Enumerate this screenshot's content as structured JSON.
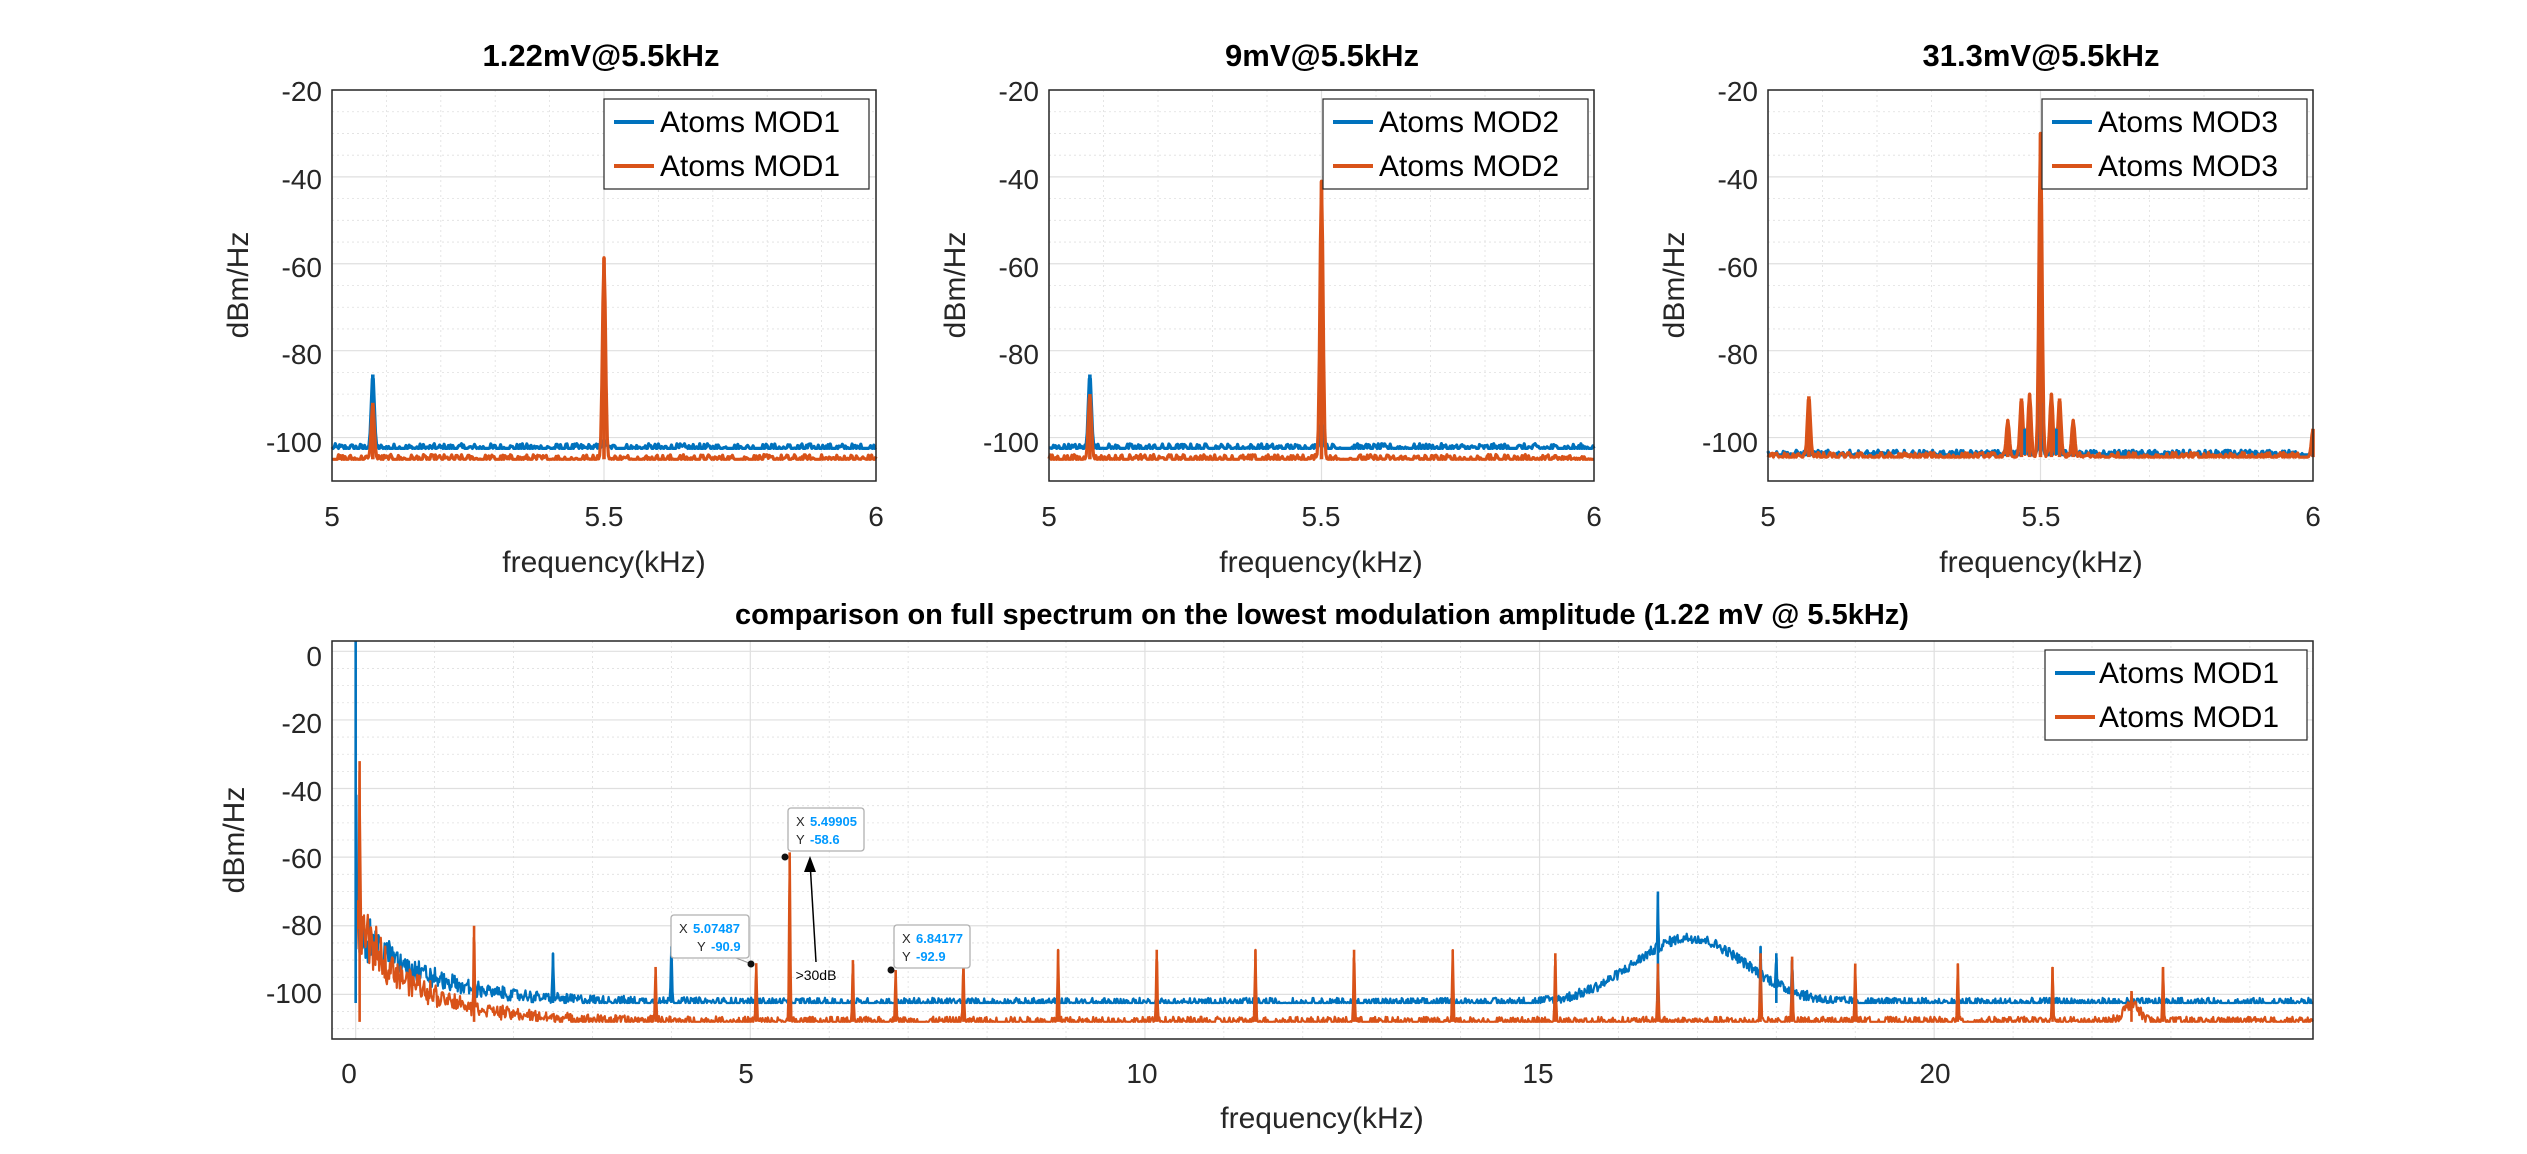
{
  "colors": {
    "series1": "#0072BD",
    "series2": "#D95319",
    "axis": "#262626",
    "grid": "#DFDFDF",
    "datatip_value": "#0099FF"
  },
  "chart_data": [
    {
      "type": "line",
      "title": "1.22mV@5.5kHz",
      "xlabel": "frequency(kHz)",
      "ylabel": "dBm/Hz",
      "xlim": [
        5,
        6
      ],
      "ylim": [
        -110,
        -20
      ],
      "y_reversed_ticks": [
        "-20",
        "-40",
        "-60",
        "-80",
        "-100"
      ],
      "xticks": [
        "5",
        "5.5",
        "6"
      ],
      "grid": true,
      "legend_position": "top-right",
      "series": [
        {
          "name": "Atoms MOD1",
          "color": "#0072BD",
          "noise_floor": -102.5,
          "peaks": [
            [
              5.075,
              -85.5
            ],
            [
              5.5,
              -100.5
            ]
          ]
        },
        {
          "name": "Atoms MOD1",
          "color": "#D95319",
          "noise_floor": -105,
          "peaks": [
            [
              5.075,
              -92
            ],
            [
              5.5,
              -58.6
            ]
          ]
        }
      ]
    },
    {
      "type": "line",
      "title": "9mV@5.5kHz",
      "xlabel": "frequency(kHz)",
      "ylabel": "dBm/Hz",
      "xlim": [
        5,
        6
      ],
      "ylim": [
        -110,
        -20
      ],
      "y_reversed_ticks": [
        "-20",
        "-40",
        "-60",
        "-80",
        "-100"
      ],
      "xticks": [
        "5",
        "5.5",
        "6"
      ],
      "grid": true,
      "legend_position": "top-right",
      "series": [
        {
          "name": "Atoms MOD2",
          "color": "#0072BD",
          "noise_floor": -102.5,
          "peaks": [
            [
              5.075,
              -85.5
            ],
            [
              5.5,
              -97
            ]
          ]
        },
        {
          "name": "Atoms MOD2",
          "color": "#D95319",
          "noise_floor": -105,
          "peaks": [
            [
              5.075,
              -90
            ],
            [
              5.5,
              -41
            ]
          ]
        }
      ]
    },
    {
      "type": "line",
      "title": "31.3mV@5.5kHz",
      "xlabel": "frequency(kHz)",
      "ylabel": "dBm/Hz",
      "xlim": [
        5,
        6
      ],
      "ylim": [
        -110,
        -20
      ],
      "y_reversed_ticks": [
        "-20",
        "-40",
        "-60",
        "-80",
        "-100"
      ],
      "xticks": [
        "5",
        "5.5",
        "6"
      ],
      "grid": true,
      "legend_position": "top-right",
      "series": [
        {
          "name": "Atoms MOD3",
          "color": "#0072BD",
          "noise_floor": -104,
          "peaks": [
            [
              5.5,
              -92
            ],
            [
              5.47,
              -98
            ],
            [
              5.53,
              -98
            ]
          ]
        },
        {
          "name": "Atoms MOD3",
          "color": "#D95319",
          "noise_floor": -104.5,
          "peaks": [
            [
              5.075,
              -90.5
            ],
            [
              5.5,
              -30
            ],
            [
              5.465,
              -91
            ],
            [
              5.535,
              -91
            ],
            [
              5.48,
              -90
            ],
            [
              5.52,
              -90
            ],
            [
              5.44,
              -96
            ],
            [
              5.56,
              -96
            ],
            [
              6.0,
              -98
            ]
          ]
        }
      ]
    },
    {
      "type": "line",
      "title": "comparison on full spectrum on the lowest modulation amplitude (1.22 mV @ 5.5kHz)",
      "xlabel": "frequency(kHz)",
      "ylabel": "dBm/Hz",
      "xlim": [
        -0.3,
        24.8
      ],
      "ylim": [
        -113,
        3
      ],
      "yticks": [
        "0",
        "-20",
        "-40",
        "-60",
        "-80",
        "-100"
      ],
      "xticks": [
        "0",
        "5",
        "10",
        "15",
        "20"
      ],
      "grid": true,
      "legend_position": "top-right",
      "series": [
        {
          "name": "Atoms MOD1",
          "color": "#0072BD",
          "noise_floor": -102.5,
          "peaks": [
            [
              0,
              3
            ],
            [
              16.5,
              -70
            ],
            [
              17.8,
              -86
            ],
            [
              18.0,
              -88
            ],
            [
              18.2,
              -90
            ],
            [
              4.0,
              -86
            ],
            [
              2.5,
              -88
            ]
          ],
          "hump": {
            "center": 16.9,
            "width": 1.0,
            "height": 19
          }
        },
        {
          "name": "Atoms MOD1",
          "color": "#D95319",
          "noise_floor": -108,
          "peaks": [
            [
              0.05,
              -32
            ],
            [
              5.49905,
              -58.6
            ],
            [
              5.07487,
              -90.9
            ],
            [
              6.84177,
              -92.9
            ],
            [
              1.5,
              -80
            ],
            [
              3.8,
              -92
            ],
            [
              6.3,
              -90
            ],
            [
              7.7,
              -90
            ],
            [
              8.9,
              -87
            ],
            [
              10.15,
              -87
            ],
            [
              11.4,
              -87
            ],
            [
              12.65,
              -87
            ],
            [
              13.9,
              -87
            ],
            [
              15.2,
              -88
            ],
            [
              16.5,
              -91
            ],
            [
              17.8,
              -88
            ],
            [
              18.2,
              -89
            ],
            [
              19.0,
              -91
            ],
            [
              20.3,
              -91
            ],
            [
              21.5,
              -92
            ],
            [
              22.9,
              -92
            ],
            [
              22.5,
              -99
            ]
          ]
        }
      ],
      "datatips": [
        {
          "x_label": "X",
          "x_value": "5.07487",
          "y_label": "Y",
          "y_value": "-90.9",
          "point": [
            5.07487,
            -90.9
          ]
        },
        {
          "x_label": "X",
          "x_value": "5.49905",
          "y_label": "Y",
          "y_value": "-58.6",
          "point": [
            5.49905,
            -58.6
          ]
        },
        {
          "x_label": "X",
          "x_value": "6.84177",
          "y_label": "Y",
          "y_value": "-92.9",
          "point": [
            6.84177,
            -92.9
          ]
        }
      ],
      "annotation": {
        "text": ">30dB",
        "arrow_to": [
          5.7,
          -59.5
        ]
      }
    }
  ]
}
